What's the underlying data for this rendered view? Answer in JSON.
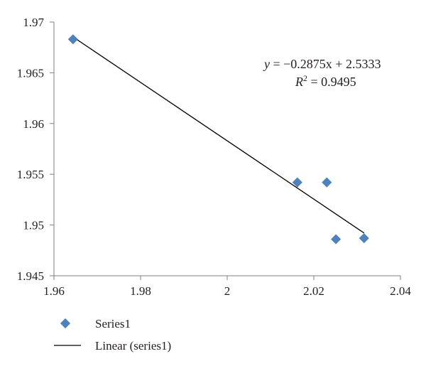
{
  "chart_data": {
    "type": "scatter",
    "title": "",
    "xlabel": "",
    "ylabel": "",
    "xlim": [
      1.96,
      2.04
    ],
    "ylim": [
      1.945,
      1.97
    ],
    "x_ticks": [
      1.96,
      1.98,
      2.0,
      2.02,
      2.04
    ],
    "x_tick_labels": [
      "1.96",
      "1.98",
      "2",
      "2.02",
      "2.04"
    ],
    "y_ticks": [
      1.945,
      1.95,
      1.955,
      1.96,
      1.965,
      1.97
    ],
    "y_tick_labels": [
      "1.945",
      "1.95",
      "1.955",
      "1.96",
      "1.965",
      "1.97"
    ],
    "grid": false,
    "legend_position": "bottom-left",
    "series": [
      {
        "name": "Series1",
        "marker": "diamond",
        "color": "#4f81bd",
        "points": [
          {
            "x": 1.9644,
            "y": 1.9683
          },
          {
            "x": 2.0162,
            "y": 1.9542
          },
          {
            "x": 2.023,
            "y": 1.9542
          },
          {
            "x": 2.0251,
            "y": 1.9486
          },
          {
            "x": 2.0316,
            "y": 1.9487
          }
        ]
      }
    ],
    "trendline": {
      "name": "Linear (series1)",
      "color": "#000000",
      "slope": -0.2875,
      "intercept": 2.5333,
      "x_range": [
        1.9644,
        2.0316
      ]
    },
    "annotation": {
      "equation_lhs": "y",
      "equation_rhs": " = −0.2875x + 2.5333",
      "r2_label": "R",
      "r2_exp": "2",
      "r2_value": " = 0.9495"
    },
    "legend": {
      "series_label": "Series1",
      "trend_label": "Linear (series1)"
    }
  }
}
